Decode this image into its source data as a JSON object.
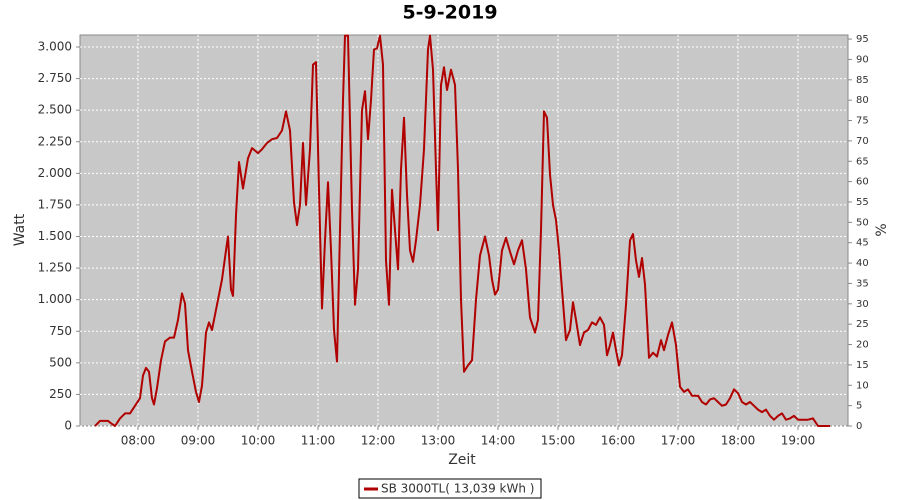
{
  "chart_data": {
    "type": "line",
    "title": "5-9-2019",
    "xlabel": "Zeit",
    "ylabel": "Watt",
    "y2label": "%",
    "x": [
      "07:17",
      "07:22",
      "07:30",
      "07:34",
      "07:37",
      "07:42",
      "07:47",
      "07:52",
      "07:57",
      "08:02",
      "08:05",
      "08:08",
      "08:11",
      "08:14",
      "08:16",
      "08:19",
      "08:23",
      "08:27",
      "08:32",
      "08:36",
      "08:40",
      "08:44",
      "08:47",
      "08:50",
      "08:54",
      "08:58",
      "09:01",
      "09:04",
      "09:08",
      "09:11",
      "09:14",
      "09:18",
      "09:24",
      "09:28",
      "09:30",
      "09:33",
      "09:35",
      "09:38",
      "09:41",
      "09:45",
      "09:50",
      "09:54",
      "10:00",
      "10:04",
      "10:09",
      "10:14",
      "10:19",
      "10:24",
      "10:28",
      "10:32",
      "10:36",
      "10:39",
      "10:42",
      "10:45",
      "10:48",
      "10:52",
      "10:55",
      "10:58",
      "11:01",
      "11:04",
      "11:07",
      "11:10",
      "11:13",
      "11:16",
      "11:19",
      "11:22",
      "11:25",
      "11:27",
      "11:30",
      "11:34",
      "11:37",
      "11:40",
      "11:44",
      "11:47",
      "11:50",
      "11:53",
      "11:56",
      "11:59",
      "12:02",
      "12:05",
      "12:08",
      "12:11",
      "12:14",
      "12:17",
      "12:20",
      "12:23",
      "12:26",
      "12:29",
      "12:32",
      "12:35",
      "12:38",
      "12:42",
      "12:46",
      "12:50",
      "12:52",
      "12:55",
      "12:58",
      "13:00",
      "13:03",
      "13:06",
      "13:09",
      "13:13",
      "13:17",
      "13:20",
      "13:23",
      "13:26",
      "13:30",
      "13:34",
      "13:38",
      "13:42",
      "13:47",
      "13:51",
      "13:54",
      "13:57",
      "14:00",
      "14:04",
      "14:08",
      "14:12",
      "14:16",
      "14:20",
      "14:24",
      "14:28",
      "14:32",
      "14:37",
      "14:40",
      "14:43",
      "14:46",
      "14:49",
      "14:52",
      "14:55",
      "14:58",
      "15:01",
      "15:04",
      "15:08",
      "15:12",
      "15:15",
      "15:18",
      "15:22",
      "15:26",
      "15:30",
      "15:34",
      "15:38",
      "15:42",
      "15:46",
      "15:49",
      "15:52",
      "15:55",
      "15:58",
      "16:01",
      "16:04",
      "16:08",
      "16:12",
      "16:15",
      "16:18",
      "16:21",
      "16:24",
      "16:27",
      "16:31",
      "16:35",
      "16:39",
      "16:43",
      "16:46",
      "16:50",
      "16:54",
      "16:58",
      "17:02",
      "17:06",
      "17:10",
      "17:14",
      "17:20",
      "17:24",
      "17:28",
      "17:32",
      "17:36",
      "17:40",
      "17:44",
      "17:48",
      "17:52",
      "17:56",
      "18:00",
      "18:04",
      "18:08",
      "18:12",
      "18:16",
      "18:20",
      "18:24",
      "18:28",
      "18:32",
      "18:36",
      "18:40",
      "18:44",
      "18:48",
      "18:52",
      "18:56",
      "19:00",
      "19:05",
      "19:10",
      "19:15",
      "19:20",
      "19:32"
    ],
    "series": [
      {
        "name": "SB 3000TL( 13,039 kWh )",
        "color": "#b00000",
        "values": [
          0,
          40,
          40,
          16,
          0,
          60,
          100,
          100,
          160,
          220,
          400,
          460,
          430,
          220,
          170,
          300,
          520,
          670,
          700,
          700,
          840,
          1050,
          970,
          600,
          430,
          270,
          190,
          320,
          740,
          820,
          760,
          920,
          1160,
          1390,
          1500,
          1080,
          1030,
          1670,
          2090,
          1880,
          2120,
          2200,
          2160,
          2190,
          2240,
          2270,
          2280,
          2340,
          2490,
          2340,
          1770,
          1590,
          1750,
          2240,
          1750,
          2190,
          2860,
          2880,
          1870,
          930,
          1470,
          1930,
          1390,
          760,
          510,
          1550,
          2580,
          3090,
          3090,
          1710,
          960,
          1240,
          2500,
          2650,
          2270,
          2580,
          2980,
          2990,
          3090,
          2860,
          1310,
          960,
          1870,
          1550,
          1240,
          2030,
          2440,
          1830,
          1390,
          1300,
          1470,
          1750,
          2190,
          2980,
          3090,
          2820,
          2030,
          1550,
          2700,
          2840,
          2660,
          2820,
          2700,
          2030,
          1000,
          430,
          480,
          520,
          1000,
          1350,
          1500,
          1350,
          1160,
          1040,
          1080,
          1390,
          1490,
          1380,
          1280,
          1390,
          1470,
          1240,
          860,
          740,
          840,
          1550,
          2490,
          2440,
          1990,
          1750,
          1630,
          1390,
          1080,
          680,
          760,
          980,
          840,
          640,
          740,
          760,
          820,
          800,
          860,
          800,
          560,
          640,
          740,
          600,
          480,
          560,
          960,
          1470,
          1520,
          1310,
          1180,
          1330,
          1120,
          540,
          580,
          550,
          680,
          600,
          720,
          820,
          640,
          310,
          270,
          290,
          240,
          240,
          190,
          170,
          210,
          220,
          190,
          160,
          170,
          220,
          290,
          260,
          190,
          170,
          190,
          160,
          130,
          110,
          130,
          80,
          50,
          80,
          100,
          50,
          60,
          80,
          50,
          50,
          50,
          60,
          0,
          0
        ]
      }
    ],
    "xlim": [
      "07:02",
      "19:50"
    ],
    "xticks": [
      "08:00",
      "09:00",
      "10:00",
      "11:00",
      "12:00",
      "13:00",
      "14:00",
      "15:00",
      "16:00",
      "17:00",
      "18:00",
      "19:00"
    ],
    "ylim": [
      0,
      3095
    ],
    "yticks": [
      0,
      250,
      500,
      750,
      {
        "value": 1000,
        "label": "1.000"
      },
      {
        "value": 1250,
        "label": "1.250"
      },
      {
        "value": 1500,
        "label": "1.500"
      },
      {
        "value": 1750,
        "label": "1.750"
      },
      {
        "value": 2000,
        "label": "2.000"
      },
      {
        "value": 2250,
        "label": "2.250"
      },
      {
        "value": 2500,
        "label": "2.500"
      },
      {
        "value": 2750,
        "label": "2.750"
      },
      {
        "value": 3000,
        "label": "3.000"
      }
    ],
    "y2lim": [
      0,
      96
    ],
    "y2ticks": [
      0,
      5,
      10,
      15,
      20,
      25,
      30,
      35,
      40,
      45,
      50,
      55,
      60,
      65,
      70,
      75,
      80,
      85,
      90,
      95
    ],
    "grid": true,
    "legend": "bottom"
  }
}
